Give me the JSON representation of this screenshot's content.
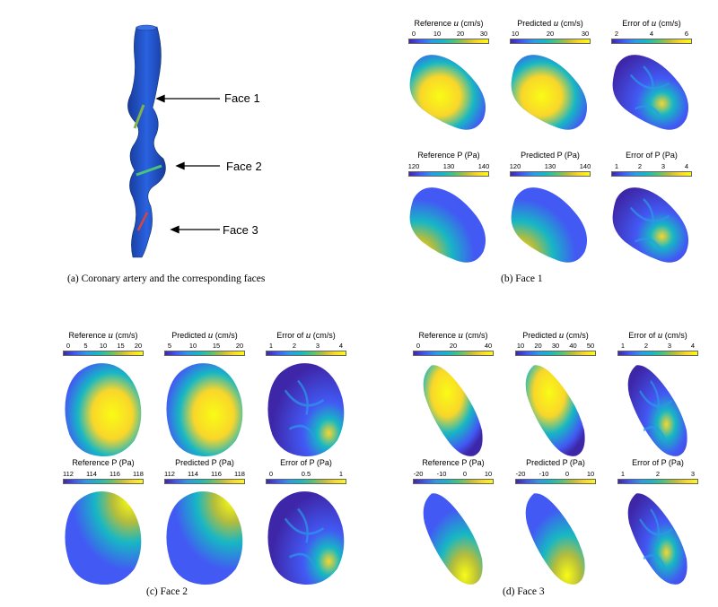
{
  "captions": {
    "a": "(a)  Coronary artery and the corresponding faces",
    "b": "(b)  Face 1",
    "c": "(c)  Face 2",
    "d": "(d)  Face 3"
  },
  "artery": {
    "face_labels": [
      "Face 1",
      "Face 2",
      "Face 3"
    ],
    "vessel_color": "#1f4fc8"
  },
  "panel_titles": {
    "ref_u": "Reference",
    "pred_u": "Predicted",
    "err_u": "Error of",
    "u_symbol": "u",
    "u_unit": "(cm/s)",
    "ref_p": "Reference P (Pa)",
    "pred_p": "Predicted P (Pa)",
    "err_p": "Error of P (Pa)"
  },
  "ticks": {
    "f1": {
      "ref_u": [
        "0",
        "10",
        "20",
        "30"
      ],
      "pred_u": [
        "10",
        "20",
        "30"
      ],
      "err_u": [
        "2",
        "4",
        "6"
      ],
      "ref_p": [
        "120",
        "130",
        "140"
      ],
      "pred_p": [
        "120",
        "130",
        "140"
      ],
      "err_p": [
        "1",
        "2",
        "3",
        "4"
      ]
    },
    "f2": {
      "ref_u": [
        "0",
        "5",
        "10",
        "15",
        "20"
      ],
      "pred_u": [
        "5",
        "10",
        "15",
        "20"
      ],
      "err_u": [
        "1",
        "2",
        "3",
        "4"
      ],
      "ref_p": [
        "112",
        "114",
        "116",
        "118"
      ],
      "pred_p": [
        "112",
        "114",
        "116",
        "118"
      ],
      "err_p": [
        "0",
        "0.5",
        "1"
      ]
    },
    "f3": {
      "ref_u": [
        "0",
        "20",
        "40"
      ],
      "pred_u": [
        "10",
        "20",
        "30",
        "40",
        "50"
      ],
      "err_u": [
        "1",
        "2",
        "3",
        "4"
      ],
      "ref_p": [
        "-20",
        "-10",
        "0",
        "10"
      ],
      "pred_p": [
        "-20",
        "-10",
        "0",
        "10"
      ],
      "err_p": [
        "1",
        "2",
        "3"
      ]
    }
  },
  "colormap": [
    "#3e26a8",
    "#4259f4",
    "#2b9ae8",
    "#17b7c4",
    "#4cc37a",
    "#b6bd3b",
    "#f9d62a",
    "#f9fb15"
  ]
}
